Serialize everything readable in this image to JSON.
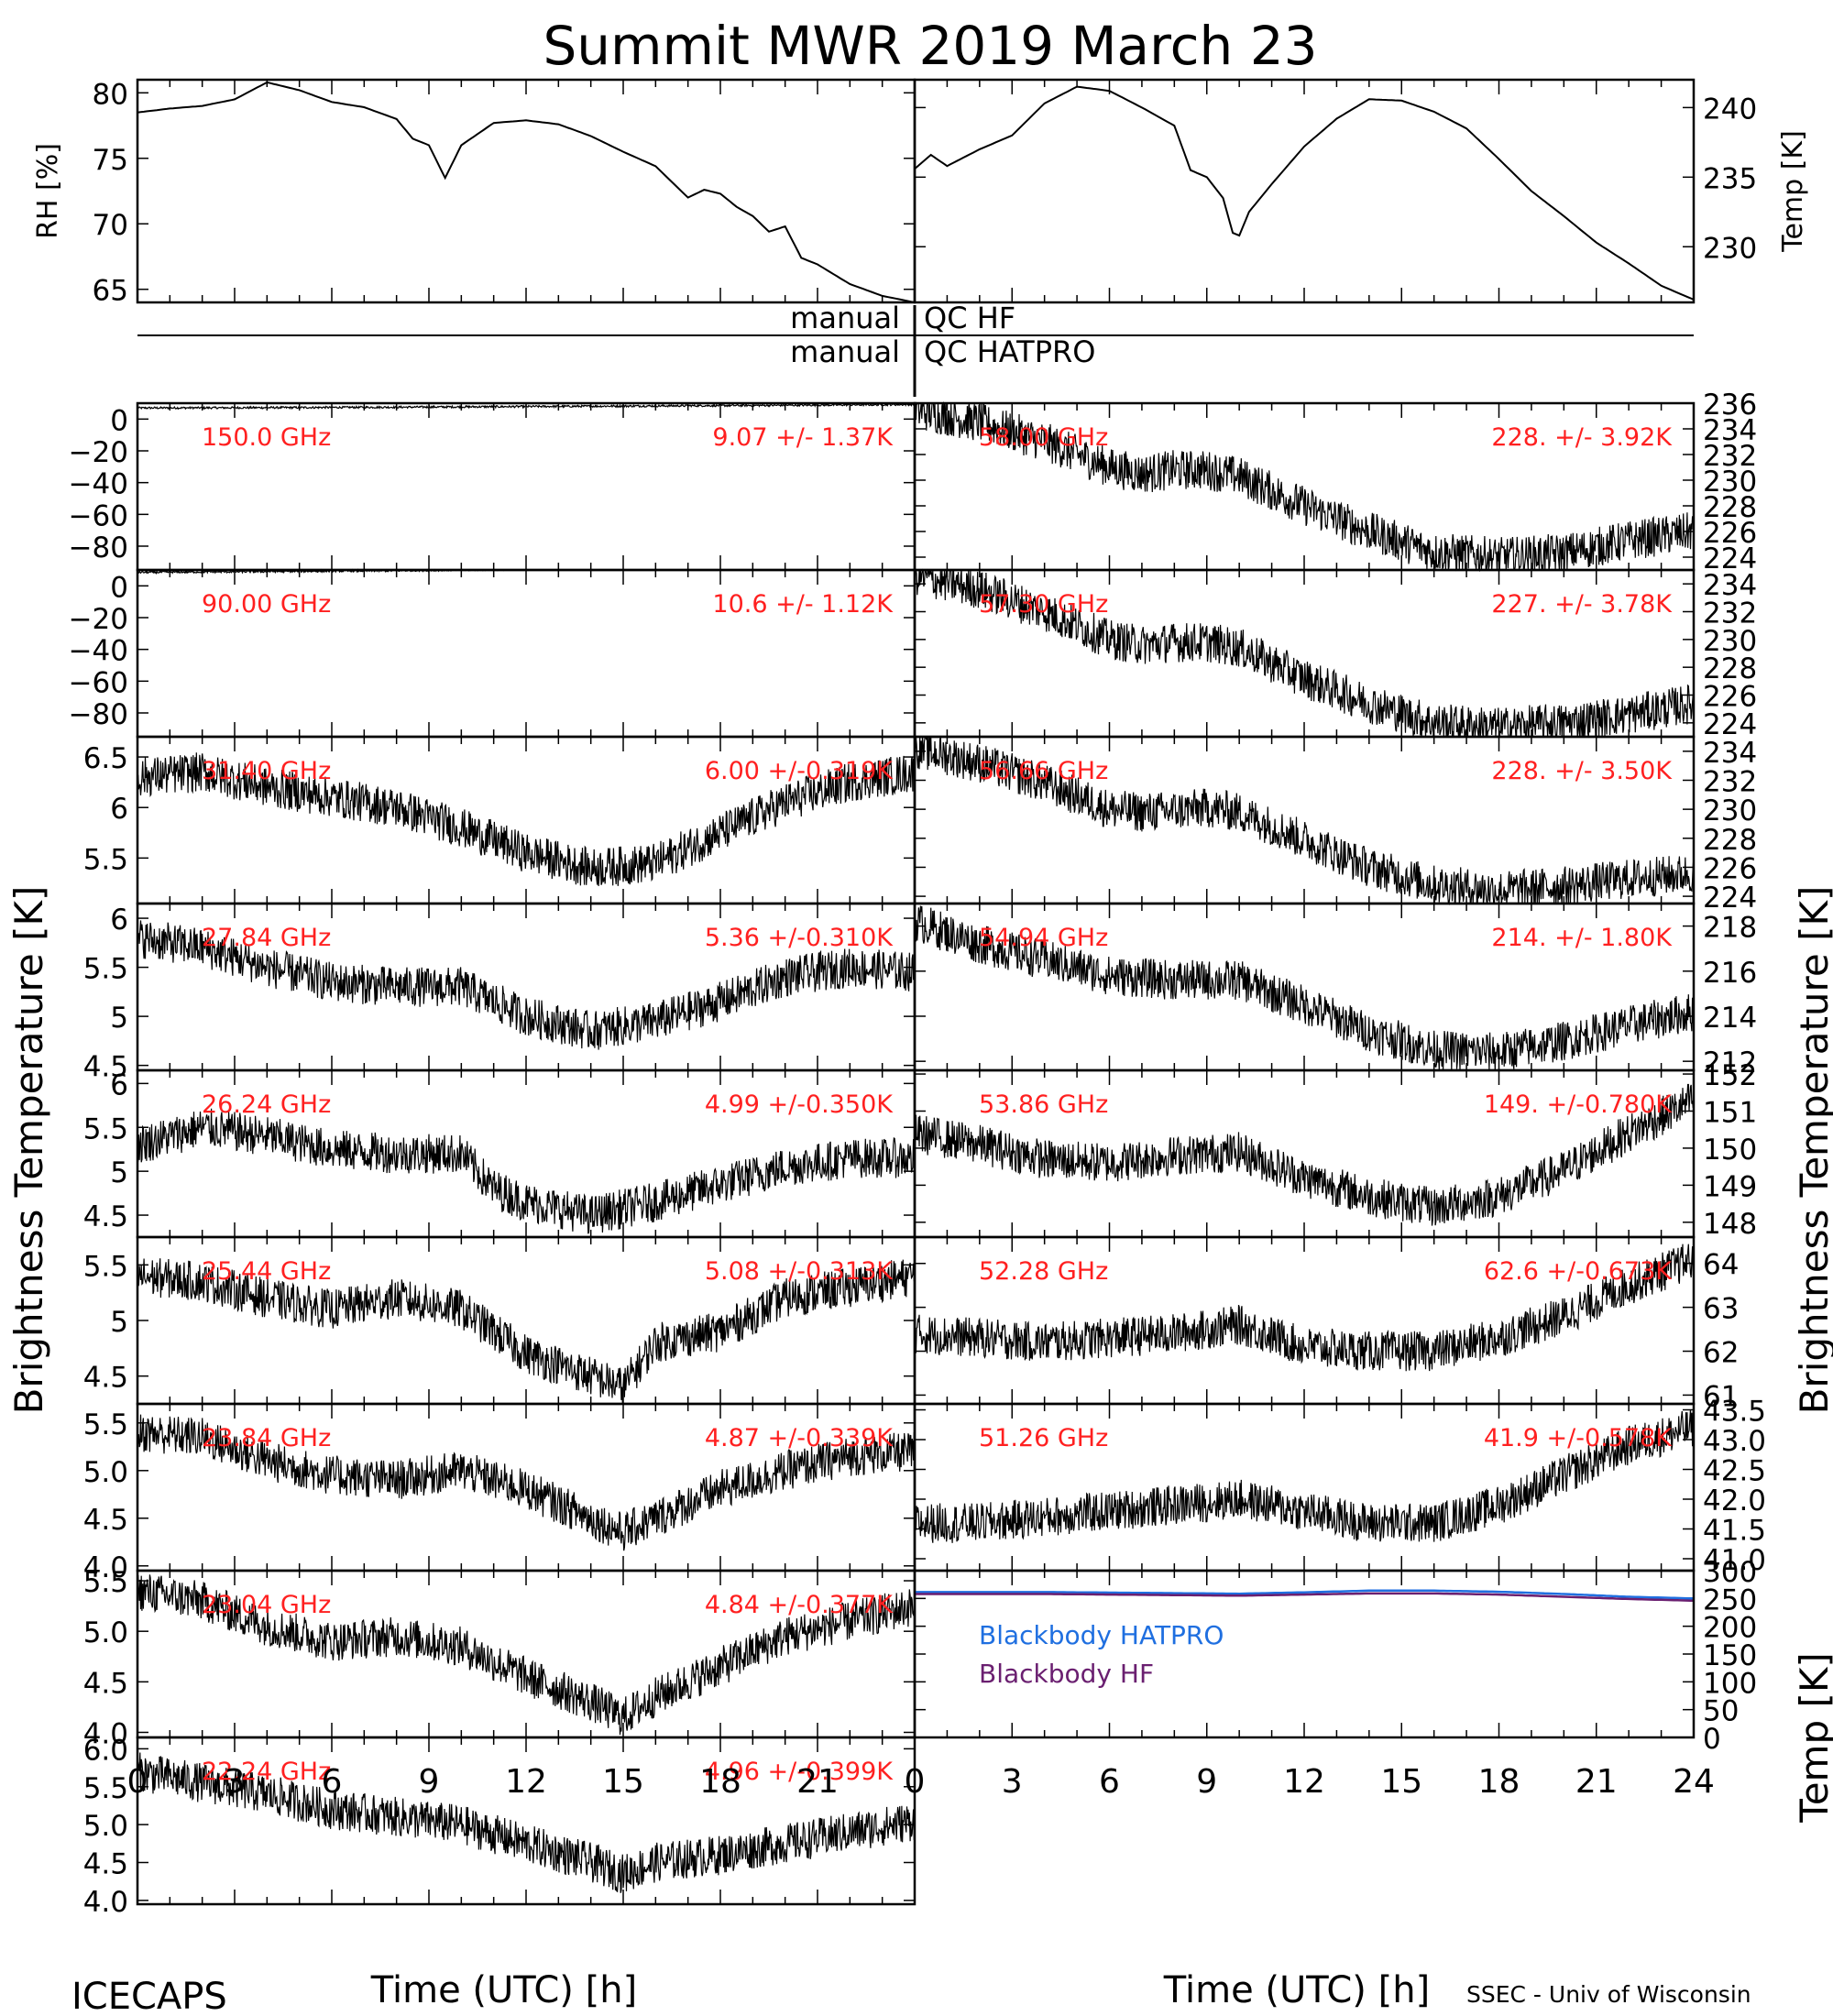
{
  "header": {
    "title": "Summit MWR 2019 March 23",
    "bottom_left": "ICECAPS",
    "bottom_right": "SSEC - Univ of Wisconsin"
  },
  "labels": {
    "xlabel": "Time (UTC) [h]",
    "left_axis": "Brightness Temperature [K]",
    "right_axis": "Brightness Temperature [K]",
    "qc_manual_hf": "manual",
    "qc_hf": "QC HF",
    "qc_manual_hatpro": "manual",
    "qc_hatpro": "QC HATPRO"
  },
  "colors": {
    "annotation": "#ff2020",
    "blackbody_hatpro": "#1f6fe0",
    "blackbody_hf": "#6a1f70",
    "trace": "#000000"
  },
  "chart_data": [
    {
      "type": "line",
      "panel": "rh",
      "ylabel": "RH [%]",
      "xlim": [
        0,
        24
      ],
      "ylim": [
        64,
        81
      ],
      "yticks": [
        65,
        70,
        75,
        80
      ],
      "x": [
        0,
        1,
        2,
        3,
        4,
        5,
        6,
        7,
        8,
        8.5,
        9,
        9.5,
        10,
        11,
        12,
        13,
        14,
        15,
        16,
        17,
        17.5,
        18,
        18.5,
        19,
        19.5,
        20,
        20.5,
        21,
        22,
        23,
        24
      ],
      "y": [
        78.5,
        78.8,
        79.0,
        79.5,
        80.8,
        80.2,
        79.3,
        78.9,
        78.0,
        76.5,
        76.0,
        73.5,
        76.0,
        77.7,
        77.9,
        77.6,
        76.7,
        75.5,
        74.4,
        72.0,
        72.6,
        72.3,
        71.3,
        70.6,
        69.4,
        69.8,
        67.4,
        66.9,
        65.4,
        64.5,
        64.0
      ]
    },
    {
      "type": "line",
      "panel": "temp",
      "ylabel": "Temp [K]",
      "xlim": [
        0,
        24
      ],
      "ylim": [
        226,
        242
      ],
      "yticks": [
        230,
        235,
        240
      ],
      "x": [
        0,
        0.5,
        1,
        2,
        3,
        4,
        5,
        6,
        7,
        8,
        8.5,
        9,
        9.5,
        9.8,
        10,
        10.3,
        11,
        12,
        13,
        14,
        15,
        16,
        17,
        18,
        19,
        20,
        21,
        22,
        23,
        24
      ],
      "y": [
        235.6,
        236.6,
        235.8,
        237.0,
        238.0,
        240.3,
        241.5,
        241.2,
        240.0,
        238.7,
        235.5,
        235.0,
        233.5,
        231.0,
        230.8,
        232.5,
        234.5,
        237.2,
        239.2,
        240.6,
        240.5,
        239.7,
        238.5,
        236.3,
        234.0,
        232.2,
        230.3,
        228.8,
        227.2,
        226.2
      ]
    },
    {
      "type": "scatter",
      "side": "left",
      "freq": "150.0 GHz",
      "stats": "9.07 +/- 1.37K",
      "ylim": [
        -95,
        10
      ],
      "yticks": [
        0,
        -20,
        -40,
        -60,
        -80
      ],
      "x": [
        0,
        4,
        8,
        12,
        16,
        20,
        24
      ],
      "y": [
        7,
        7.2,
        7.5,
        7.9,
        8.3,
        8.7,
        9.2
      ]
    },
    {
      "type": "scatter",
      "side": "right",
      "freq": "58.00 GHz",
      "stats": "228. +/- 3.92K",
      "ylim": [
        223,
        236
      ],
      "yticks": [
        224,
        226,
        228,
        230,
        232,
        234,
        236
      ],
      "x": [
        0,
        2,
        4,
        6,
        7,
        8,
        9,
        10,
        12,
        14,
        16,
        18,
        20,
        22,
        24
      ],
      "y": [
        235.5,
        234.5,
        233,
        231,
        230.5,
        230.8,
        230.8,
        230.3,
        228,
        226,
        224.4,
        224.0,
        224.3,
        225.3,
        226.0
      ]
    },
    {
      "type": "scatter",
      "side": "left",
      "freq": "90.00 GHz",
      "stats": "10.6 +/- 1.12K",
      "ylim": [
        -95,
        10
      ],
      "yticks": [
        0,
        -20,
        -40,
        -60,
        -80
      ],
      "x": [
        0,
        4,
        8,
        12,
        16,
        20,
        24
      ],
      "y": [
        8.5,
        9.0,
        9.6,
        10.4,
        11.2,
        11.8,
        12.4
      ]
    },
    {
      "type": "scatter",
      "side": "right",
      "freq": "57.30 GHz",
      "stats": "227. +/- 3.78K",
      "ylim": [
        223,
        235
      ],
      "yticks": [
        224,
        226,
        228,
        230,
        232,
        234
      ],
      "x": [
        0,
        2,
        4,
        6,
        7,
        8,
        9,
        10,
        12,
        14,
        16,
        18,
        20,
        22,
        24
      ],
      "y": [
        234.6,
        233.6,
        232,
        230,
        229.6,
        229.8,
        229.8,
        229.4,
        227.2,
        225.4,
        224.0,
        223.7,
        224.0,
        224.6,
        225.4
      ]
    },
    {
      "type": "scatter",
      "side": "left",
      "freq": "31.40 GHz",
      "stats": "6.00 +/-0.319K",
      "ylim": [
        5.05,
        6.7
      ],
      "yticks": [
        5.5,
        6.0,
        6.5
      ],
      "x": [
        0,
        2,
        4,
        6,
        8,
        10,
        12,
        14,
        16,
        18,
        20,
        22,
        24
      ],
      "y": [
        6.3,
        6.35,
        6.2,
        6.1,
        6.0,
        5.8,
        5.55,
        5.4,
        5.45,
        5.75,
        6.05,
        6.25,
        6.35
      ]
    },
    {
      "type": "scatter",
      "side": "right",
      "freq": "56.66 GHz",
      "stats": "228. +/- 3.50K",
      "ylim": [
        223.5,
        235
      ],
      "yticks": [
        224,
        226,
        228,
        230,
        232,
        234
      ],
      "x": [
        0,
        2,
        4,
        6,
        7,
        8,
        9,
        10,
        12,
        14,
        16,
        18,
        20,
        22,
        24
      ],
      "y": [
        234.2,
        233.2,
        231.8,
        230.0,
        229.8,
        229.9,
        230.1,
        229.8,
        227.9,
        226.0,
        224.8,
        224.4,
        224.7,
        225.2,
        225.6
      ]
    },
    {
      "type": "scatter",
      "side": "left",
      "freq": "27.84 GHz",
      "stats": "5.36 +/-0.310K",
      "ylim": [
        4.45,
        6.15
      ],
      "yticks": [
        4.5,
        5.0,
        5.5,
        6.0
      ],
      "x": [
        0,
        2,
        4,
        6,
        8,
        10,
        12,
        14,
        16,
        18,
        20,
        22,
        24
      ],
      "y": [
        5.8,
        5.7,
        5.5,
        5.35,
        5.3,
        5.3,
        5.0,
        4.85,
        4.95,
        5.15,
        5.4,
        5.5,
        5.45
      ]
    },
    {
      "type": "scatter",
      "side": "right",
      "freq": "54.94 GHz",
      "stats": "214. +/- 1.80K",
      "ylim": [
        211.6,
        219
      ],
      "yticks": [
        212,
        214,
        216,
        218
      ],
      "x": [
        0,
        2,
        4,
        6,
        8,
        10,
        12,
        14,
        16,
        18,
        20,
        22,
        24
      ],
      "y": [
        218.2,
        217.2,
        216.5,
        215.8,
        215.6,
        215.6,
        214.5,
        213.3,
        212.5,
        212.4,
        212.9,
        213.6,
        214.2
      ]
    },
    {
      "type": "scatter",
      "side": "left",
      "freq": "26.24 GHz",
      "stats": "4.99 +/-0.350K",
      "ylim": [
        4.25,
        6.15
      ],
      "yticks": [
        4.5,
        5.0,
        5.5,
        6.0
      ],
      "x": [
        0,
        2,
        4,
        6,
        8,
        10,
        11,
        12,
        14,
        16,
        18,
        20,
        22,
        24
      ],
      "y": [
        5.3,
        5.5,
        5.4,
        5.25,
        5.2,
        5.2,
        4.8,
        4.65,
        4.5,
        4.65,
        4.85,
        5.05,
        5.15,
        5.15
      ]
    },
    {
      "type": "scatter",
      "side": "right",
      "freq": "53.86 GHz",
      "stats": "149. +/-0.780K",
      "ylim": [
        147.6,
        152.1
      ],
      "yticks": [
        148,
        149,
        150,
        151,
        152
      ],
      "x": [
        0,
        2,
        4,
        6,
        8,
        10,
        12,
        14,
        16,
        18,
        20,
        22,
        24
      ],
      "y": [
        150.4,
        150.1,
        149.7,
        149.6,
        149.8,
        149.9,
        149.2,
        148.7,
        148.4,
        148.7,
        149.4,
        150.4,
        151.3
      ]
    },
    {
      "type": "scatter",
      "side": "left",
      "freq": "25.44 GHz",
      "stats": "5.08 +/-0.313K",
      "ylim": [
        4.25,
        5.75
      ],
      "yticks": [
        4.5,
        5.0,
        5.5
      ],
      "x": [
        0,
        2,
        4,
        6,
        8,
        10,
        12,
        14,
        15,
        16,
        18,
        20,
        22,
        24
      ],
      "y": [
        5.4,
        5.35,
        5.2,
        5.1,
        5.2,
        5.1,
        4.7,
        4.5,
        4.4,
        4.8,
        4.9,
        5.2,
        5.3,
        5.4
      ]
    },
    {
      "type": "scatter",
      "side": "right",
      "freq": "52.28 GHz",
      "stats": "62.6 +/-0.673K",
      "ylim": [
        60.8,
        64.6
      ],
      "yticks": [
        61,
        62,
        63,
        64
      ],
      "x": [
        0,
        2,
        4,
        6,
        8,
        10,
        12,
        14,
        16,
        18,
        20,
        22,
        24
      ],
      "y": [
        62.4,
        62.3,
        62.2,
        62.3,
        62.4,
        62.6,
        62.1,
        62.0,
        62.0,
        62.3,
        62.8,
        63.5,
        64.1
      ]
    },
    {
      "type": "scatter",
      "side": "left",
      "freq": "23.84 GHz",
      "stats": "4.87 +/-0.339K",
      "ylim": [
        3.95,
        5.7
      ],
      "yticks": [
        4.0,
        4.5,
        5.0,
        5.5
      ],
      "x": [
        0,
        2,
        4,
        6,
        8,
        10,
        12,
        14,
        15,
        16,
        18,
        20,
        22,
        24
      ],
      "y": [
        5.4,
        5.35,
        5.1,
        4.95,
        4.9,
        5.0,
        4.8,
        4.5,
        4.35,
        4.5,
        4.8,
        5.0,
        5.15,
        5.2
      ]
    },
    {
      "type": "scatter",
      "side": "right",
      "freq": "51.26 GHz",
      "stats": "41.9 +/-0.578K",
      "ylim": [
        40.8,
        43.6
      ],
      "yticks": [
        41.0,
        41.5,
        42.0,
        42.5,
        43.0,
        43.5
      ],
      "x": [
        0,
        2,
        4,
        6,
        8,
        10,
        12,
        14,
        16,
        18,
        20,
        22,
        24
      ],
      "y": [
        41.6,
        41.6,
        41.7,
        41.8,
        41.9,
        42.0,
        41.8,
        41.6,
        41.6,
        41.9,
        42.4,
        42.9,
        43.2
      ]
    },
    {
      "type": "scatter",
      "side": "left",
      "freq": "23.04 GHz",
      "stats": "4.84 +/-0.377K",
      "ylim": [
        3.95,
        5.6
      ],
      "yticks": [
        4.0,
        4.5,
        5.0,
        5.5
      ],
      "x": [
        0,
        2,
        4,
        6,
        8,
        10,
        12,
        14,
        15,
        16,
        18,
        20,
        22,
        24
      ],
      "y": [
        5.4,
        5.3,
        5.05,
        4.9,
        4.95,
        4.85,
        4.55,
        4.3,
        4.15,
        4.35,
        4.65,
        4.95,
        5.1,
        5.25
      ]
    },
    {
      "type": "line",
      "side": "right",
      "panel": "blackbody",
      "ylabel": "Temp [K]",
      "ylim": [
        0,
        300
      ],
      "yticks": [
        0,
        50,
        100,
        150,
        200,
        250,
        300
      ],
      "x": [
        0,
        4,
        8,
        10,
        12,
        14,
        16,
        18,
        20,
        22,
        24
      ],
      "series": [
        {
          "name": "Blackbody HATPRO",
          "values": [
            261.5,
            261.5,
            259.5,
            258.5,
            261,
            264,
            264,
            262,
            258,
            253,
            250
          ]
        },
        {
          "name": "Blackbody HF",
          "values": [
            258,
            258,
            256,
            255,
            257,
            259,
            259,
            257,
            253,
            249,
            246
          ]
        }
      ]
    },
    {
      "type": "scatter",
      "side": "left",
      "freq": "22.24 GHz",
      "stats": "4.96 +/-0.399K",
      "ylim": [
        3.95,
        6.15
      ],
      "yticks": [
        4.0,
        4.5,
        5.0,
        5.5,
        6.0
      ],
      "x": [
        0,
        2,
        4,
        6,
        8,
        10,
        12,
        14,
        15,
        16,
        18,
        20,
        22,
        24
      ],
      "y": [
        5.7,
        5.55,
        5.4,
        5.2,
        5.1,
        5.0,
        4.75,
        4.5,
        4.35,
        4.5,
        4.6,
        4.75,
        4.9,
        5.05
      ]
    }
  ]
}
